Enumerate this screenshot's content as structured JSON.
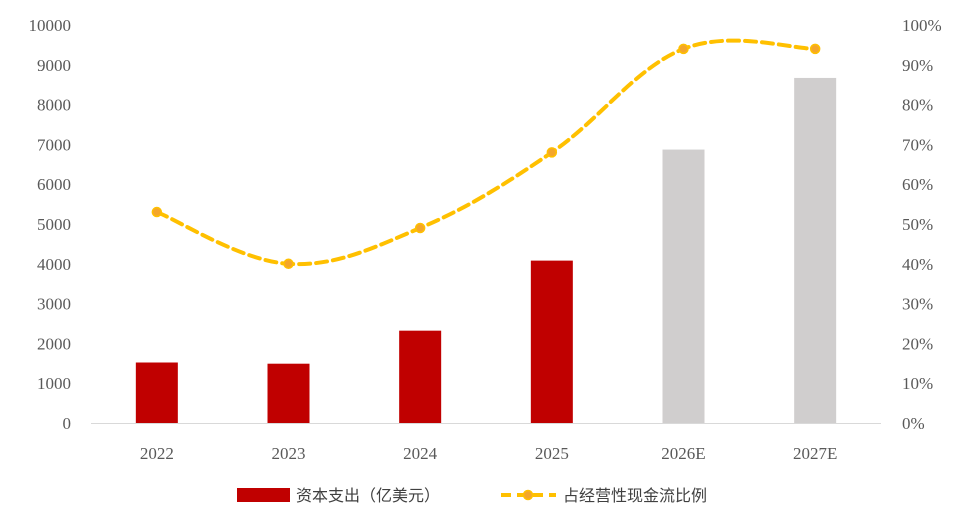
{
  "chart_data": {
    "type": "bar",
    "categories": [
      "2022",
      "2023",
      "2024",
      "2025",
      "2026E",
      "2027E"
    ],
    "series": [
      {
        "name": "资本支出（亿美元）",
        "type": "bar",
        "axis": "left",
        "values": [
          1520,
          1490,
          2320,
          4080,
          6870,
          8670
        ],
        "colors": [
          "#c00000",
          "#c00000",
          "#c00000",
          "#c00000",
          "#d0cece",
          "#d0cece"
        ]
      },
      {
        "name": "占经营性现金流比例",
        "type": "line",
        "axis": "right",
        "values": [
          0.53,
          0.4,
          0.49,
          0.68,
          0.94,
          0.94
        ],
        "color": "#ffc000",
        "marker_color": "#f4a62a"
      }
    ],
    "y_left": {
      "ylim": [
        0,
        10000
      ],
      "ticks": [
        "0",
        "1000",
        "2000",
        "3000",
        "4000",
        "5000",
        "6000",
        "7000",
        "8000",
        "9000",
        "10000"
      ]
    },
    "y_right": {
      "ylim": [
        0,
        1
      ],
      "ticks": [
        "0%",
        "10%",
        "20%",
        "30%",
        "40%",
        "50%",
        "60%",
        "70%",
        "80%",
        "90%",
        "100%"
      ]
    },
    "legend_position": "bottom",
    "grid": false
  }
}
